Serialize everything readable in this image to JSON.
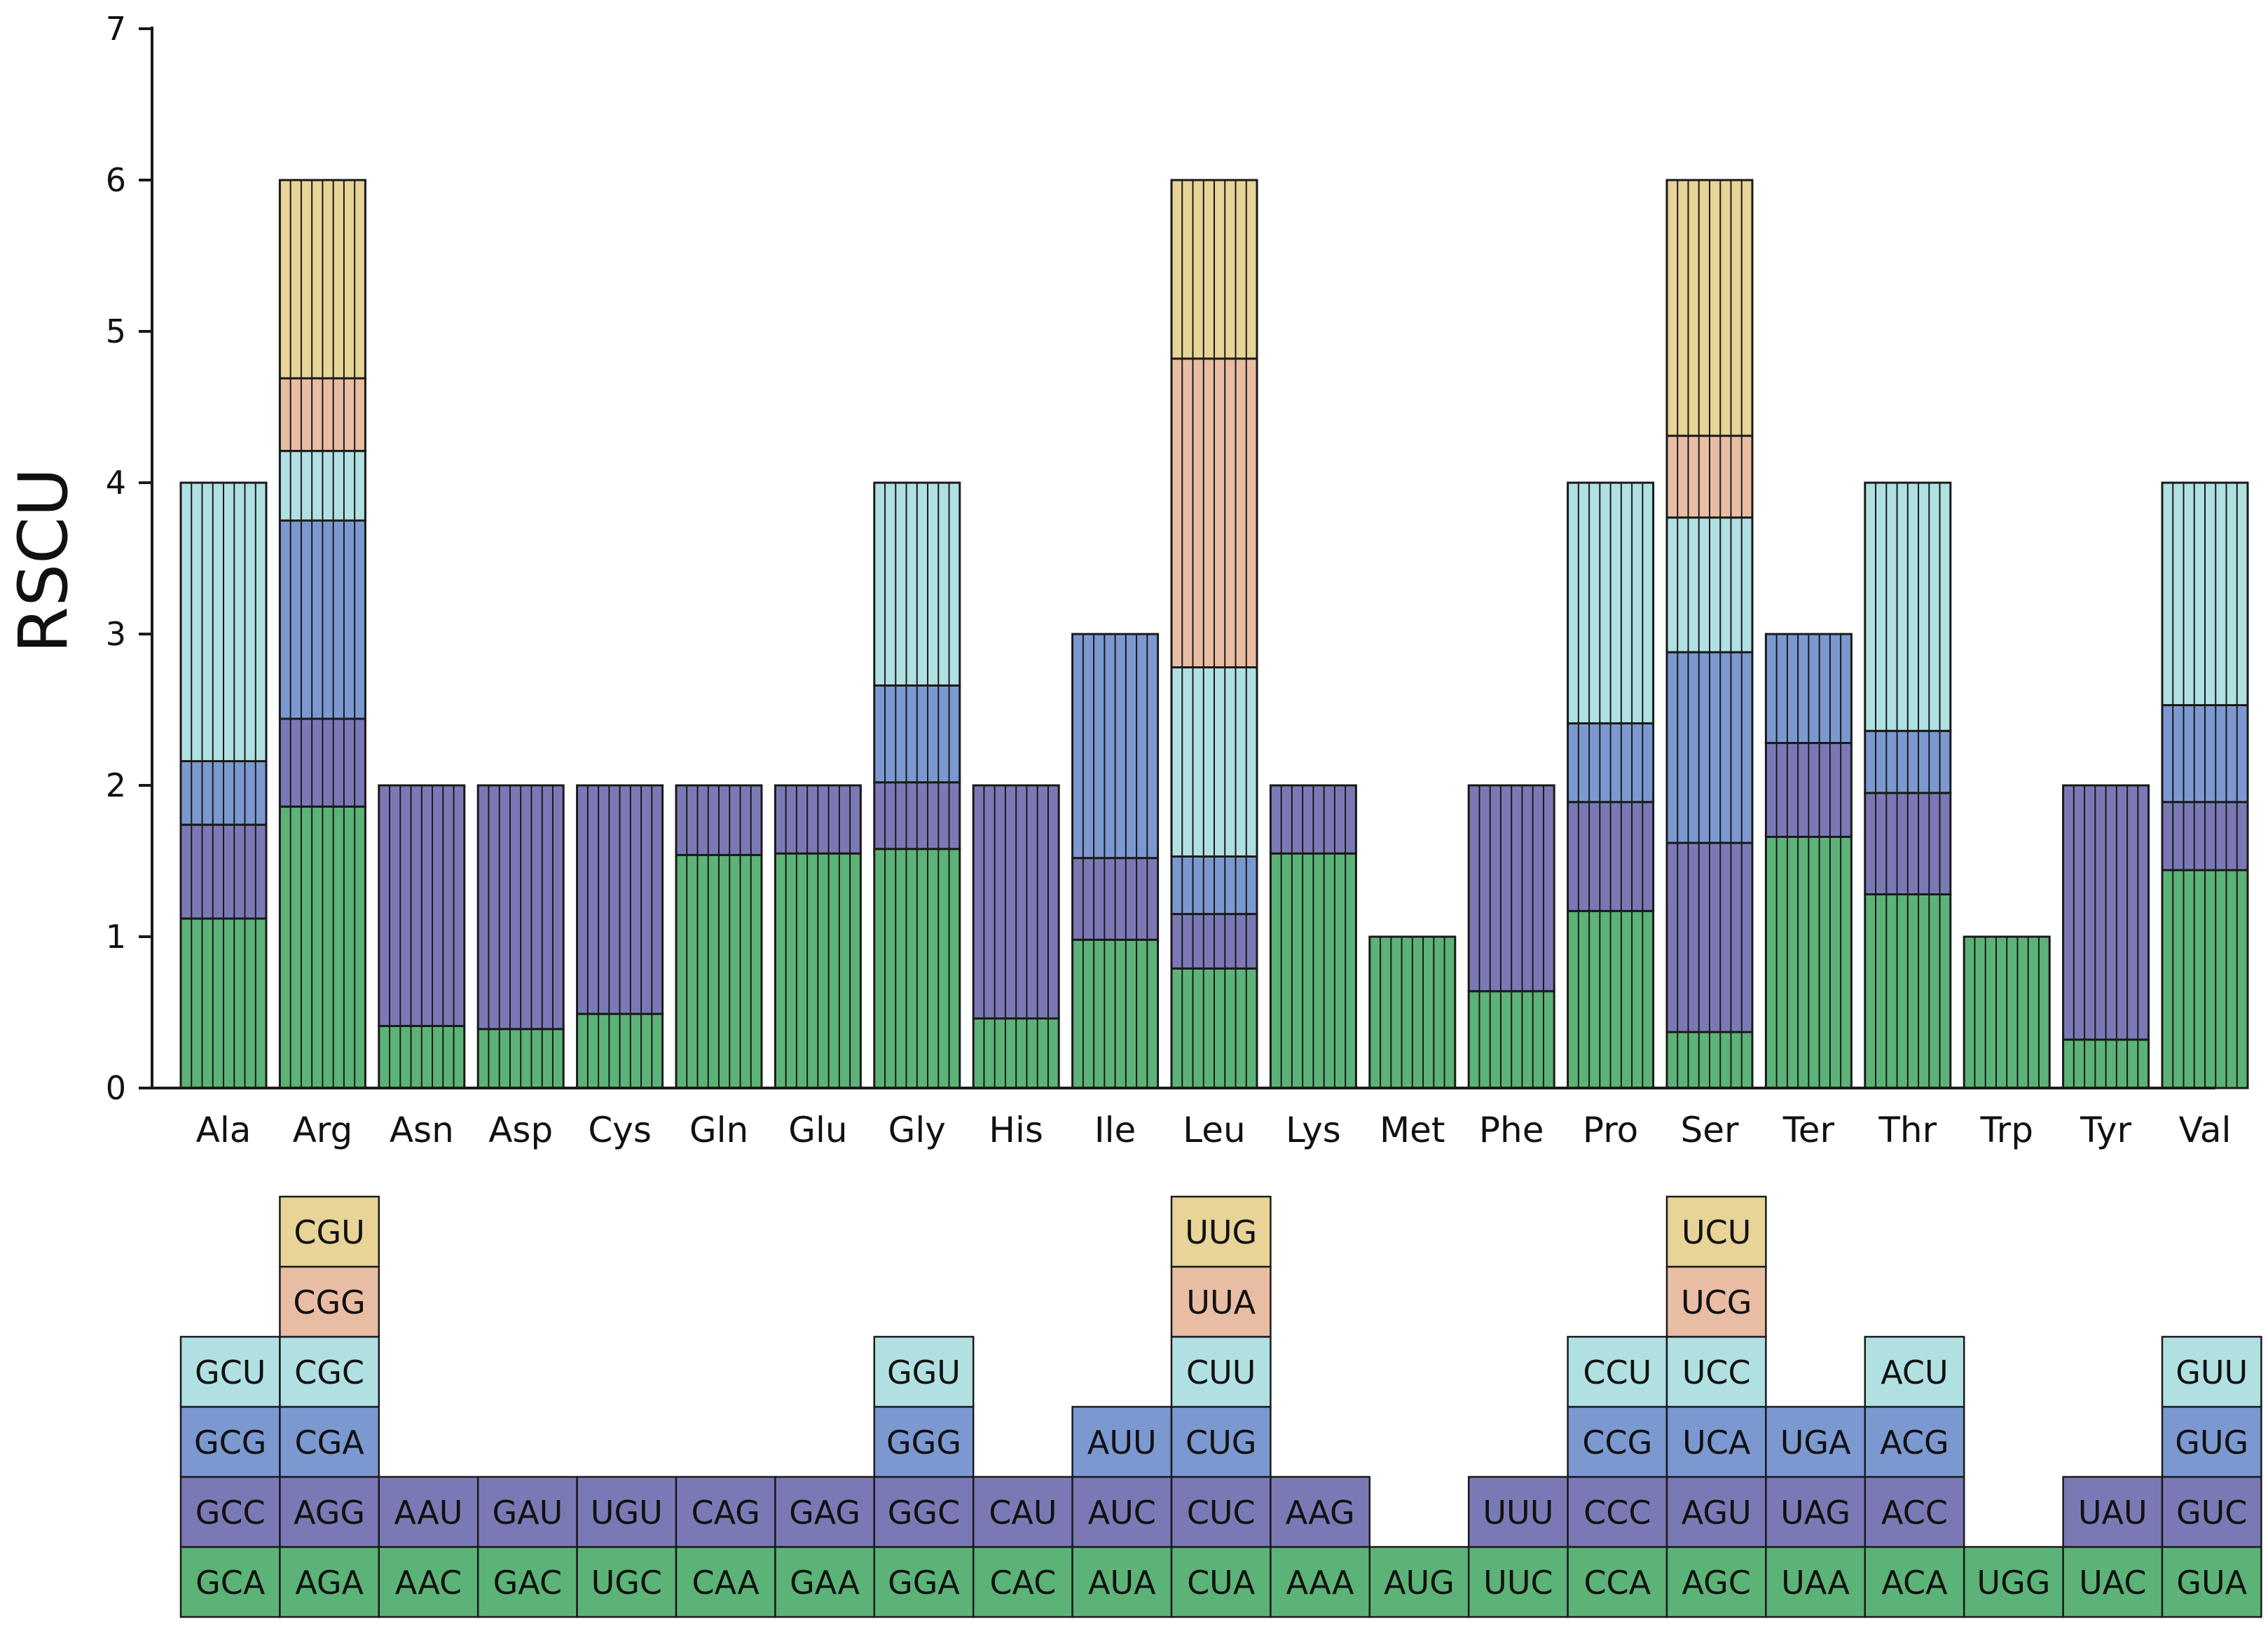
{
  "chart_data": {
    "type": "bar",
    "subtype": "stacked",
    "ylabel": "RSCU",
    "xlabel": "",
    "ylim": [
      0,
      7
    ],
    "yticks": [
      0,
      1,
      2,
      3,
      4,
      5,
      6,
      7
    ],
    "layer_colors": [
      "#5cb377",
      "#7b79b5",
      "#7b99d0",
      "#b0e0e2",
      "#e8bda4",
      "#e7d496"
    ],
    "categories": [
      {
        "name": "Ala",
        "codons": [
          "GCA",
          "GCC",
          "GCG",
          "GCU"
        ],
        "values": [
          1.12,
          0.62,
          0.42,
          1.84
        ]
      },
      {
        "name": "Arg",
        "codons": [
          "AGA",
          "AGG",
          "CGA",
          "CGC",
          "CGG",
          "CGU"
        ],
        "values": [
          1.86,
          0.58,
          1.31,
          0.46,
          0.48,
          1.31
        ]
      },
      {
        "name": "Asn",
        "codons": [
          "AAC",
          "AAU"
        ],
        "values": [
          0.41,
          1.59
        ]
      },
      {
        "name": "Asp",
        "codons": [
          "GAC",
          "GAU"
        ],
        "values": [
          0.39,
          1.61
        ]
      },
      {
        "name": "Cys",
        "codons": [
          "UGC",
          "UGU"
        ],
        "values": [
          0.49,
          1.51
        ]
      },
      {
        "name": "Gln",
        "codons": [
          "CAA",
          "CAG"
        ],
        "values": [
          1.54,
          0.46
        ]
      },
      {
        "name": "Glu",
        "codons": [
          "GAA",
          "GAG"
        ],
        "values": [
          1.55,
          0.45
        ]
      },
      {
        "name": "Gly",
        "codons": [
          "GGA",
          "GGC",
          "GGG",
          "GGU"
        ],
        "values": [
          1.58,
          0.44,
          0.64,
          1.34
        ]
      },
      {
        "name": "His",
        "codons": [
          "CAC",
          "CAU"
        ],
        "values": [
          0.46,
          1.54
        ]
      },
      {
        "name": "Ile",
        "codons": [
          "AUA",
          "AUC",
          "AUU"
        ],
        "values": [
          0.98,
          0.54,
          1.48
        ]
      },
      {
        "name": "Leu",
        "codons": [
          "CUA",
          "CUC",
          "CUG",
          "CUU",
          "UUA",
          "UUG"
        ],
        "values": [
          0.79,
          0.36,
          0.38,
          1.25,
          2.04,
          1.18
        ]
      },
      {
        "name": "Lys",
        "codons": [
          "AAA",
          "AAG"
        ],
        "values": [
          1.55,
          0.45
        ]
      },
      {
        "name": "Met",
        "codons": [
          "AUG"
        ],
        "values": [
          1.0
        ]
      },
      {
        "name": "Phe",
        "codons": [
          "UUC",
          "UUU"
        ],
        "values": [
          0.64,
          1.36
        ]
      },
      {
        "name": "Pro",
        "codons": [
          "CCA",
          "CCC",
          "CCG",
          "CCU"
        ],
        "values": [
          1.17,
          0.72,
          0.52,
          1.59
        ]
      },
      {
        "name": "Ser",
        "codons": [
          "AGC",
          "AGU",
          "UCA",
          "UCC",
          "UCG",
          "UCU"
        ],
        "values": [
          0.37,
          1.25,
          1.26,
          0.89,
          0.54,
          1.69
        ]
      },
      {
        "name": "Ter",
        "codons": [
          "UAA",
          "UAG",
          "UGA"
        ],
        "values": [
          1.66,
          0.62,
          0.72
        ]
      },
      {
        "name": "Thr",
        "codons": [
          "ACA",
          "ACC",
          "ACG",
          "ACU"
        ],
        "values": [
          1.28,
          0.67,
          0.41,
          1.64
        ]
      },
      {
        "name": "Trp",
        "codons": [
          "UGG"
        ],
        "values": [
          1.0
        ]
      },
      {
        "name": "Tyr",
        "codons": [
          "UAC",
          "UAU"
        ],
        "values": [
          0.32,
          1.68
        ]
      },
      {
        "name": "Val",
        "codons": [
          "GUA",
          "GUC",
          "GUG",
          "GUU"
        ],
        "values": [
          1.44,
          0.45,
          0.64,
          1.47
        ]
      }
    ]
  }
}
